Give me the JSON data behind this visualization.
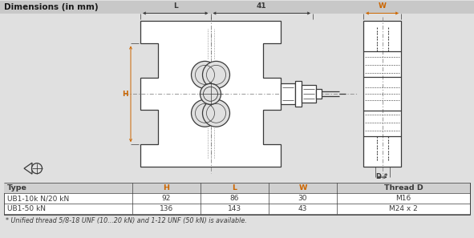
{
  "title": "Dimensions (in mm)",
  "title_bg": "#c8c8c8",
  "bg_color": "#e0e0e0",
  "draw_color": "#3a3a3a",
  "line_color": "#555555",
  "orange_color": "#cc6600",
  "table_headers": [
    "Type",
    "H",
    "L",
    "W",
    "Thread D"
  ],
  "table_row1": [
    "UB1-10k N/20 kN",
    "92",
    "86",
    "30",
    "M16"
  ],
  "table_row2": [
    "UB1-50 kN",
    "136",
    "143",
    "43",
    "M24 x 2"
  ],
  "footnote": "* Unified thread 5/8-18 UNF (10...20 kN) and 1-12 UNF (50 kN) is available.",
  "dim_L": "L",
  "dim_41": "41",
  "dim_W": "W",
  "dim_H": "H",
  "dim_D": "D *"
}
